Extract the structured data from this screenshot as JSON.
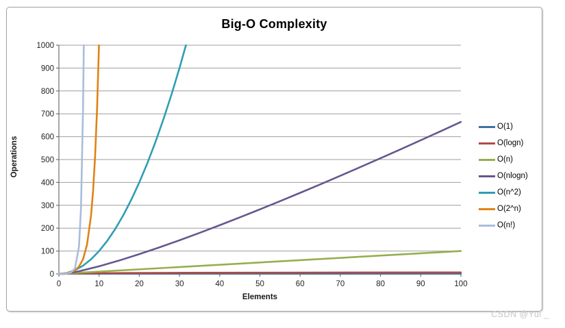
{
  "page": {
    "watermark": "CSDN @Yui _"
  },
  "chart": {
    "title": "Big-O Complexity",
    "x_axis": {
      "label": "Elements"
    },
    "y_axis": {
      "label": "Operations"
    }
  },
  "chart_data": {
    "type": "line",
    "title": "Big-O Complexity",
    "xlabel": "Elements",
    "ylabel": "Operations",
    "xlim": [
      0,
      100
    ],
    "ylim": [
      0,
      1000
    ],
    "x_ticks": [
      0,
      10,
      20,
      30,
      40,
      50,
      60,
      70,
      80,
      90,
      100
    ],
    "y_ticks": [
      0,
      100,
      200,
      300,
      400,
      500,
      600,
      700,
      800,
      900,
      1000
    ],
    "grid": "horizontal",
    "legend_position": "right",
    "colors": {
      "grid": "#9e9e9e",
      "axis": "#6f6f6f",
      "tick_text": "#1f1f1f"
    },
    "series": [
      {
        "name": "O(1)",
        "color": "#41719C",
        "points": [
          [
            0,
            1
          ],
          [
            100,
            1
          ]
        ]
      },
      {
        "name": "O(logn)",
        "color": "#B24B46",
        "points": [
          [
            1,
            0
          ],
          [
            2,
            1
          ],
          [
            4,
            2
          ],
          [
            8,
            3
          ],
          [
            16,
            4
          ],
          [
            32,
            5
          ],
          [
            64,
            6
          ],
          [
            100,
            6.6
          ]
        ]
      },
      {
        "name": "O(n)",
        "color": "#96AE4D",
        "points": [
          [
            0,
            0
          ],
          [
            100,
            100
          ]
        ]
      },
      {
        "name": "O(nlogn)",
        "color": "#66568F",
        "points": [
          [
            0,
            0
          ],
          [
            1,
            0
          ],
          [
            2,
            2
          ],
          [
            5,
            11.6
          ],
          [
            10,
            33.2
          ],
          [
            15,
            58.6
          ],
          [
            20,
            86.4
          ],
          [
            25,
            116.1
          ],
          [
            30,
            147.2
          ],
          [
            35,
            179.5
          ],
          [
            40,
            212.9
          ],
          [
            45,
            247.2
          ],
          [
            50,
            282.2
          ],
          [
            55,
            318.0
          ],
          [
            60,
            354.4
          ],
          [
            65,
            391.4
          ],
          [
            70,
            429.0
          ],
          [
            75,
            467.2
          ],
          [
            80,
            505.8
          ],
          [
            85,
            544.8
          ],
          [
            90,
            584.3
          ],
          [
            95,
            624.2
          ],
          [
            100,
            664.4
          ]
        ]
      },
      {
        "name": "O(n^2)",
        "color": "#2E9DB3",
        "points": [
          [
            0,
            0
          ],
          [
            2,
            4
          ],
          [
            4,
            16
          ],
          [
            6,
            36
          ],
          [
            8,
            64
          ],
          [
            10,
            100
          ],
          [
            12,
            144
          ],
          [
            14,
            196
          ],
          [
            16,
            256
          ],
          [
            18,
            324
          ],
          [
            20,
            400
          ],
          [
            22,
            484
          ],
          [
            24,
            576
          ],
          [
            26,
            676
          ],
          [
            28,
            784
          ],
          [
            30,
            900
          ],
          [
            31.6,
            1000
          ]
        ]
      },
      {
        "name": "O(2^n)",
        "color": "#E08214",
        "points": [
          [
            0,
            1
          ],
          [
            1,
            2
          ],
          [
            2,
            4
          ],
          [
            3,
            8
          ],
          [
            4,
            16
          ],
          [
            5,
            32
          ],
          [
            6,
            64
          ],
          [
            7,
            128
          ],
          [
            8,
            256
          ],
          [
            8.5,
            362
          ],
          [
            9,
            512
          ],
          [
            9.5,
            724
          ],
          [
            9.97,
            1000
          ]
        ]
      },
      {
        "name": "O(n!)",
        "color": "#A8BDDB",
        "points": [
          [
            0,
            1
          ],
          [
            1,
            1
          ],
          [
            2,
            2
          ],
          [
            3,
            6
          ],
          [
            4,
            24
          ],
          [
            5,
            120
          ],
          [
            5.5,
            288
          ],
          [
            6,
            720
          ],
          [
            6.2,
            1000
          ]
        ]
      }
    ]
  }
}
